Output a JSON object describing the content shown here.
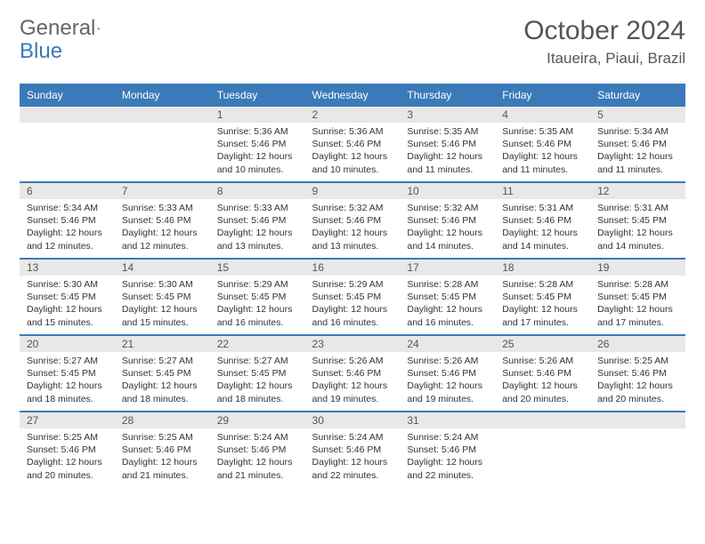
{
  "brand": {
    "part1": "General",
    "part2": "Blue"
  },
  "title": "October 2024",
  "location": "Itaueira, Piaui, Brazil",
  "colors": {
    "header_bg": "#3a7ab8",
    "header_text": "#ffffff",
    "daynum_bg": "#e8e8e8",
    "text": "#333333",
    "border": "#3a7ab8"
  },
  "typography": {
    "body_pt": 10.5,
    "daynum_pt": 12,
    "title_pt": 30,
    "location_pt": 17
  },
  "weekdays": [
    "Sunday",
    "Monday",
    "Tuesday",
    "Wednesday",
    "Thursday",
    "Friday",
    "Saturday"
  ],
  "weeks": [
    [
      {
        "n": "",
        "lines": [
          "",
          "",
          ""
        ]
      },
      {
        "n": "",
        "lines": [
          "",
          "",
          ""
        ]
      },
      {
        "n": "1",
        "lines": [
          "Sunrise: 5:36 AM",
          "Sunset: 5:46 PM",
          "Daylight: 12 hours and 10 minutes."
        ]
      },
      {
        "n": "2",
        "lines": [
          "Sunrise: 5:36 AM",
          "Sunset: 5:46 PM",
          "Daylight: 12 hours and 10 minutes."
        ]
      },
      {
        "n": "3",
        "lines": [
          "Sunrise: 5:35 AM",
          "Sunset: 5:46 PM",
          "Daylight: 12 hours and 11 minutes."
        ]
      },
      {
        "n": "4",
        "lines": [
          "Sunrise: 5:35 AM",
          "Sunset: 5:46 PM",
          "Daylight: 12 hours and 11 minutes."
        ]
      },
      {
        "n": "5",
        "lines": [
          "Sunrise: 5:34 AM",
          "Sunset: 5:46 PM",
          "Daylight: 12 hours and 11 minutes."
        ]
      }
    ],
    [
      {
        "n": "6",
        "lines": [
          "Sunrise: 5:34 AM",
          "Sunset: 5:46 PM",
          "Daylight: 12 hours and 12 minutes."
        ]
      },
      {
        "n": "7",
        "lines": [
          "Sunrise: 5:33 AM",
          "Sunset: 5:46 PM",
          "Daylight: 12 hours and 12 minutes."
        ]
      },
      {
        "n": "8",
        "lines": [
          "Sunrise: 5:33 AM",
          "Sunset: 5:46 PM",
          "Daylight: 12 hours and 13 minutes."
        ]
      },
      {
        "n": "9",
        "lines": [
          "Sunrise: 5:32 AM",
          "Sunset: 5:46 PM",
          "Daylight: 12 hours and 13 minutes."
        ]
      },
      {
        "n": "10",
        "lines": [
          "Sunrise: 5:32 AM",
          "Sunset: 5:46 PM",
          "Daylight: 12 hours and 14 minutes."
        ]
      },
      {
        "n": "11",
        "lines": [
          "Sunrise: 5:31 AM",
          "Sunset: 5:46 PM",
          "Daylight: 12 hours and 14 minutes."
        ]
      },
      {
        "n": "12",
        "lines": [
          "Sunrise: 5:31 AM",
          "Sunset: 5:45 PM",
          "Daylight: 12 hours and 14 minutes."
        ]
      }
    ],
    [
      {
        "n": "13",
        "lines": [
          "Sunrise: 5:30 AM",
          "Sunset: 5:45 PM",
          "Daylight: 12 hours and 15 minutes."
        ]
      },
      {
        "n": "14",
        "lines": [
          "Sunrise: 5:30 AM",
          "Sunset: 5:45 PM",
          "Daylight: 12 hours and 15 minutes."
        ]
      },
      {
        "n": "15",
        "lines": [
          "Sunrise: 5:29 AM",
          "Sunset: 5:45 PM",
          "Daylight: 12 hours and 16 minutes."
        ]
      },
      {
        "n": "16",
        "lines": [
          "Sunrise: 5:29 AM",
          "Sunset: 5:45 PM",
          "Daylight: 12 hours and 16 minutes."
        ]
      },
      {
        "n": "17",
        "lines": [
          "Sunrise: 5:28 AM",
          "Sunset: 5:45 PM",
          "Daylight: 12 hours and 16 minutes."
        ]
      },
      {
        "n": "18",
        "lines": [
          "Sunrise: 5:28 AM",
          "Sunset: 5:45 PM",
          "Daylight: 12 hours and 17 minutes."
        ]
      },
      {
        "n": "19",
        "lines": [
          "Sunrise: 5:28 AM",
          "Sunset: 5:45 PM",
          "Daylight: 12 hours and 17 minutes."
        ]
      }
    ],
    [
      {
        "n": "20",
        "lines": [
          "Sunrise: 5:27 AM",
          "Sunset: 5:45 PM",
          "Daylight: 12 hours and 18 minutes."
        ]
      },
      {
        "n": "21",
        "lines": [
          "Sunrise: 5:27 AM",
          "Sunset: 5:45 PM",
          "Daylight: 12 hours and 18 minutes."
        ]
      },
      {
        "n": "22",
        "lines": [
          "Sunrise: 5:27 AM",
          "Sunset: 5:45 PM",
          "Daylight: 12 hours and 18 minutes."
        ]
      },
      {
        "n": "23",
        "lines": [
          "Sunrise: 5:26 AM",
          "Sunset: 5:46 PM",
          "Daylight: 12 hours and 19 minutes."
        ]
      },
      {
        "n": "24",
        "lines": [
          "Sunrise: 5:26 AM",
          "Sunset: 5:46 PM",
          "Daylight: 12 hours and 19 minutes."
        ]
      },
      {
        "n": "25",
        "lines": [
          "Sunrise: 5:26 AM",
          "Sunset: 5:46 PM",
          "Daylight: 12 hours and 20 minutes."
        ]
      },
      {
        "n": "26",
        "lines": [
          "Sunrise: 5:25 AM",
          "Sunset: 5:46 PM",
          "Daylight: 12 hours and 20 minutes."
        ]
      }
    ],
    [
      {
        "n": "27",
        "lines": [
          "Sunrise: 5:25 AM",
          "Sunset: 5:46 PM",
          "Daylight: 12 hours and 20 minutes."
        ]
      },
      {
        "n": "28",
        "lines": [
          "Sunrise: 5:25 AM",
          "Sunset: 5:46 PM",
          "Daylight: 12 hours and 21 minutes."
        ]
      },
      {
        "n": "29",
        "lines": [
          "Sunrise: 5:24 AM",
          "Sunset: 5:46 PM",
          "Daylight: 12 hours and 21 minutes."
        ]
      },
      {
        "n": "30",
        "lines": [
          "Sunrise: 5:24 AM",
          "Sunset: 5:46 PM",
          "Daylight: 12 hours and 22 minutes."
        ]
      },
      {
        "n": "31",
        "lines": [
          "Sunrise: 5:24 AM",
          "Sunset: 5:46 PM",
          "Daylight: 12 hours and 22 minutes."
        ]
      },
      {
        "n": "",
        "lines": [
          "",
          "",
          ""
        ]
      },
      {
        "n": "",
        "lines": [
          "",
          "",
          ""
        ]
      }
    ]
  ]
}
